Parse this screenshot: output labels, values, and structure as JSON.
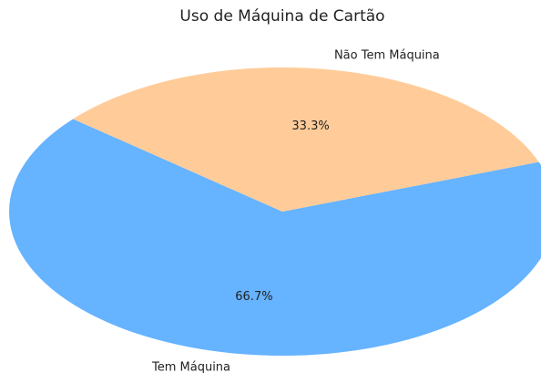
{
  "chart_data": {
    "type": "pie",
    "title": "Uso de Máquina de Cartão",
    "categories": [
      "Tem Máquina",
      "Não Tem Máquina"
    ],
    "values": [
      66.7,
      33.3
    ],
    "value_labels": [
      "66.7%",
      "33.3%"
    ],
    "colors": [
      "#66b3ff",
      "#ffcc99"
    ],
    "start_angle": 140
  }
}
